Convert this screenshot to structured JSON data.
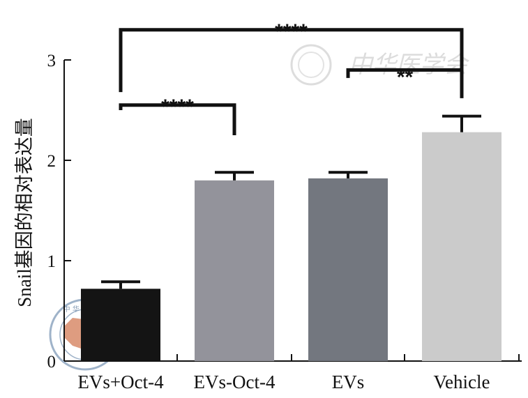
{
  "chart_data": {
    "type": "bar",
    "categories": [
      "EVs+Oct-4",
      "EVs-Oct-4",
      "EVs",
      "Vehicle"
    ],
    "values": [
      0.72,
      1.8,
      1.82,
      2.28
    ],
    "errors": [
      0.07,
      0.08,
      0.06,
      0.16
    ],
    "bar_colors": [
      "#141414",
      "#93939b",
      "#73777f",
      "#cbcbcb"
    ],
    "title": "",
    "xlabel": "",
    "ylabel": "Snail基因的相对表达量",
    "ylim": [
      0,
      3
    ],
    "yticks": [
      0,
      1,
      2,
      3
    ],
    "grid": false,
    "significance": [
      {
        "from": 0,
        "to": 1,
        "label": "****",
        "level": 2.55
      },
      {
        "from": 2,
        "to": 3,
        "label": "**",
        "level": 2.9
      },
      {
        "from": 0,
        "to": 3,
        "label": "****",
        "level": 3.3
      }
    ]
  },
  "watermark": {
    "text": "中华医学会",
    "seal_text": "中 华 医 学 会",
    "seal_icon": "china-map-seal-icon"
  }
}
